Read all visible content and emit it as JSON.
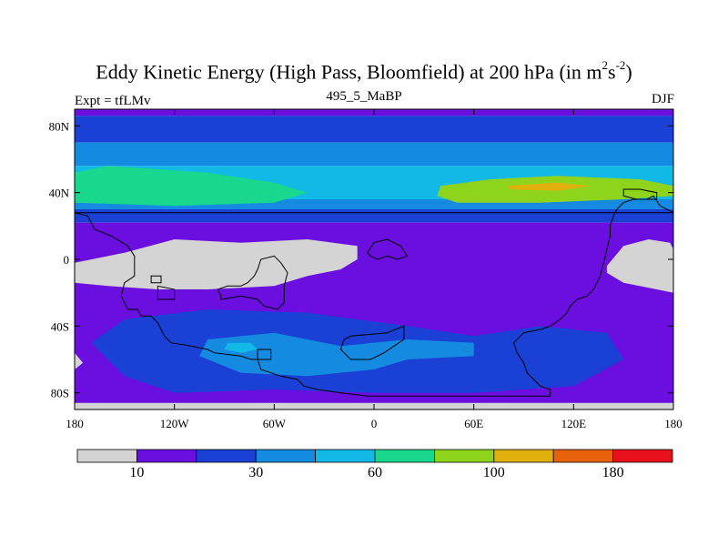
{
  "title": {
    "main": "Eddy Kinetic Energy (High Pass, Bloomfield) at 200 hPa (in m",
    "sup1": "2",
    "mid": "s",
    "sup2": "-2",
    "end": ")"
  },
  "subtitle": "495_5_MaBP",
  "left_label": "Expt = tfLMv",
  "right_label": "DJF",
  "chart_data": {
    "type": "heatmap",
    "projection": "cylindrical equidistant",
    "lon_range": [
      -180,
      180
    ],
    "lat_range": [
      -90,
      90
    ],
    "x_ticks": [
      {
        "value": -180,
        "label": "180"
      },
      {
        "value": -120,
        "label": "120W"
      },
      {
        "value": -60,
        "label": "60W"
      },
      {
        "value": 0,
        "label": "0"
      },
      {
        "value": 60,
        "label": "60E"
      },
      {
        "value": 120,
        "label": "120E"
      },
      {
        "value": 180,
        "label": "180"
      }
    ],
    "y_ticks": [
      {
        "value": 80,
        "label": "80N"
      },
      {
        "value": 40,
        "label": "40N"
      },
      {
        "value": 0,
        "label": "0"
      },
      {
        "value": -40,
        "label": "40S"
      },
      {
        "value": -80,
        "label": "80S"
      }
    ],
    "colorbar": {
      "colors": [
        "#d4d4d4",
        "#6a0fe0",
        "#1a40d6",
        "#148be0",
        "#12b9e6",
        "#18d88e",
        "#8fd41c",
        "#e0b00c",
        "#e8620c",
        "#e8101c"
      ],
      "labels": [
        {
          "after_box": 1,
          "label": "10"
        },
        {
          "after_box": 3,
          "label": "30"
        },
        {
          "after_box": 5,
          "label": "60"
        },
        {
          "after_box": 7,
          "label": "100"
        },
        {
          "after_box": 9,
          "label": "180"
        }
      ]
    },
    "zonal_bands": [
      {
        "lat_top": 90,
        "lat_bottom": 86,
        "level": 2
      },
      {
        "lat_top": 86,
        "lat_bottom": 70,
        "level": 3
      },
      {
        "lat_top": 70,
        "lat_bottom": 56,
        "level": 4
      },
      {
        "lat_top": 56,
        "lat_bottom": 36,
        "level": 5
      },
      {
        "lat_top": 36,
        "lat_bottom": 30,
        "level": 4
      },
      {
        "lat_top": 30,
        "lat_bottom": 22,
        "level": 3
      },
      {
        "lat_top": 22,
        "lat_bottom": -90,
        "level": 2
      }
    ],
    "regions": [
      {
        "level": 6,
        "points": [
          [
            -180,
            52
          ],
          [
            -160,
            56
          ],
          [
            -100,
            52
          ],
          [
            -60,
            46
          ],
          [
            -40,
            40
          ],
          [
            -60,
            34
          ],
          [
            -120,
            32
          ],
          [
            -180,
            34
          ]
        ]
      },
      {
        "level": 7,
        "points": [
          [
            40,
            44
          ],
          [
            70,
            48
          ],
          [
            110,
            50
          ],
          [
            160,
            48
          ],
          [
            180,
            44
          ],
          [
            180,
            38
          ],
          [
            150,
            36
          ],
          [
            100,
            34
          ],
          [
            50,
            34
          ],
          [
            38,
            38
          ]
        ]
      },
      {
        "level": 8,
        "points": [
          [
            80,
            44
          ],
          [
            110,
            46
          ],
          [
            130,
            44
          ],
          [
            110,
            41
          ],
          [
            82,
            42
          ]
        ]
      },
      {
        "level": 3,
        "points": [
          [
            -150,
            -36
          ],
          [
            -100,
            -30
          ],
          [
            -40,
            -32
          ],
          [
            20,
            -40
          ],
          [
            60,
            -46
          ],
          [
            100,
            -40
          ],
          [
            140,
            -44
          ],
          [
            150,
            -60
          ],
          [
            120,
            -76
          ],
          [
            60,
            -80
          ],
          [
            0,
            -80
          ],
          [
            -60,
            -78
          ],
          [
            -120,
            -80
          ],
          [
            -150,
            -70
          ],
          [
            -170,
            -50
          ]
        ]
      },
      {
        "level": 4,
        "points": [
          [
            -100,
            -48
          ],
          [
            -60,
            -44
          ],
          [
            -20,
            -52
          ],
          [
            20,
            -48
          ],
          [
            60,
            -50
          ],
          [
            60,
            -58
          ],
          [
            20,
            -60
          ],
          [
            0,
            -66
          ],
          [
            -40,
            -70
          ],
          [
            -80,
            -68
          ],
          [
            -105,
            -58
          ]
        ]
      },
      {
        "level": 5,
        "points": [
          [
            -88,
            -50
          ],
          [
            -74,
            -50
          ],
          [
            -70,
            -54
          ],
          [
            -80,
            -56
          ],
          [
            -90,
            -54
          ]
        ]
      },
      {
        "level": 2,
        "points": [
          [
            -180,
            -72
          ],
          [
            -140,
            -76
          ],
          [
            -100,
            -84
          ],
          [
            -40,
            -86
          ],
          [
            40,
            -86
          ],
          [
            100,
            -84
          ],
          [
            150,
            -80
          ],
          [
            180,
            -76
          ],
          [
            180,
            -90
          ],
          [
            -180,
            -90
          ]
        ]
      },
      {
        "level": 1,
        "points": [
          [
            -180,
            -86
          ],
          [
            180,
            -86
          ],
          [
            180,
            -90
          ],
          [
            -180,
            -90
          ]
        ]
      },
      {
        "level": 1,
        "points": [
          [
            -180,
            -2
          ],
          [
            -150,
            4
          ],
          [
            -120,
            12
          ],
          [
            -80,
            10
          ],
          [
            -40,
            12
          ],
          [
            -10,
            8
          ],
          [
            -10,
            0
          ],
          [
            -20,
            -6
          ],
          [
            -40,
            -10
          ],
          [
            -60,
            -16
          ],
          [
            -100,
            -18
          ],
          [
            -130,
            -18
          ],
          [
            -160,
            -16
          ],
          [
            -180,
            -14
          ]
        ]
      },
      {
        "level": 1,
        "points": [
          [
            -180,
            -56
          ],
          [
            -175,
            -62
          ],
          [
            -180,
            -66
          ]
        ]
      },
      {
        "level": 1,
        "points": [
          [
            140,
            -4
          ],
          [
            150,
            8
          ],
          [
            165,
            12
          ],
          [
            178,
            10
          ],
          [
            180,
            6
          ],
          [
            180,
            -20
          ],
          [
            170,
            -18
          ],
          [
            150,
            -14
          ],
          [
            140,
            -8
          ]
        ]
      }
    ],
    "outlines": [
      [
        [
          -180,
          28
        ],
        [
          -172,
          26
        ],
        [
          -168,
          18
        ],
        [
          -158,
          14
        ],
        [
          -148,
          8
        ],
        [
          -144,
          2
        ],
        [
          -144,
          -10
        ],
        [
          -150,
          -14
        ],
        [
          -152,
          -22
        ],
        [
          -148,
          -30
        ],
        [
          -142,
          -30
        ],
        [
          -140,
          -34
        ],
        [
          -134,
          -34
        ],
        [
          -130,
          -38
        ],
        [
          -126,
          -46
        ],
        [
          -122,
          -50
        ],
        [
          -110,
          -52
        ],
        [
          -100,
          -54
        ],
        [
          -96,
          -56
        ],
        [
          -80,
          -58
        ],
        [
          -74,
          -60
        ],
        [
          -70,
          -60
        ],
        [
          -68,
          -66
        ],
        [
          -62,
          -68
        ],
        [
          -56,
          -70
        ],
        [
          -46,
          -72
        ],
        [
          -42,
          -76
        ],
        [
          -34,
          -78
        ],
        [
          -20,
          -80
        ],
        [
          -4,
          -82
        ],
        [
          40,
          -82
        ],
        [
          80,
          -82
        ],
        [
          100,
          -82
        ],
        [
          106,
          -82
        ],
        [
          106,
          -78
        ],
        [
          100,
          -76
        ],
        [
          96,
          -72
        ],
        [
          92,
          -68
        ],
        [
          90,
          -62
        ],
        [
          86,
          -56
        ],
        [
          84,
          -50
        ],
        [
          90,
          -44
        ],
        [
          100,
          -42
        ],
        [
          106,
          -40
        ],
        [
          112,
          -36
        ],
        [
          116,
          -32
        ],
        [
          118,
          -28
        ],
        [
          122,
          -24
        ],
        [
          128,
          -22
        ],
        [
          132,
          -18
        ],
        [
          134,
          -14
        ],
        [
          136,
          -10
        ],
        [
          138,
          -2
        ],
        [
          140,
          6
        ],
        [
          142,
          14
        ],
        [
          142,
          20
        ],
        [
          144,
          26
        ],
        [
          146,
          30
        ],
        [
          150,
          34
        ],
        [
          156,
          36
        ],
        [
          164,
          36
        ],
        [
          168,
          38
        ],
        [
          172,
          32
        ],
        [
          176,
          30
        ],
        [
          180,
          28
        ]
      ],
      [
        [
          -92,
          -24
        ],
        [
          -80,
          -22
        ],
        [
          -70,
          -24
        ],
        [
          -66,
          -28
        ],
        [
          -58,
          -30
        ],
        [
          -54,
          -26
        ],
        [
          -54,
          -16
        ],
        [
          -52,
          -8
        ],
        [
          -56,
          -2
        ],
        [
          -60,
          2
        ],
        [
          -68,
          0
        ],
        [
          -70,
          -6
        ],
        [
          -72,
          -10
        ],
        [
          -76,
          -14
        ],
        [
          -80,
          -16
        ],
        [
          -88,
          -16
        ],
        [
          -94,
          -18
        ],
        [
          -92,
          -22
        ]
      ],
      [
        [
          -14,
          -46
        ],
        [
          8,
          -44
        ],
        [
          18,
          -40
        ],
        [
          18,
          -48
        ],
        [
          12,
          -52
        ],
        [
          6,
          -56
        ],
        [
          -2,
          -60
        ],
        [
          -14,
          -60
        ],
        [
          -20,
          -54
        ],
        [
          -18,
          -48
        ]
      ],
      [
        [
          -4,
          4
        ],
        [
          0,
          10
        ],
        [
          8,
          12
        ],
        [
          16,
          8
        ],
        [
          20,
          2
        ],
        [
          14,
          0
        ],
        [
          8,
          2
        ],
        [
          2,
          0
        ],
        [
          -2,
          2
        ]
      ],
      [
        [
          -130,
          -16
        ],
        [
          -130,
          -24
        ],
        [
          -120,
          -24
        ],
        [
          -120,
          -18
        ]
      ],
      [
        [
          -134,
          -10
        ],
        [
          -134,
          -14
        ],
        [
          -128,
          -14
        ],
        [
          -128,
          -10
        ]
      ],
      [
        [
          -70,
          -54
        ],
        [
          -70,
          -60
        ],
        [
          -62,
          -60
        ],
        [
          -62,
          -54
        ]
      ],
      [
        [
          150,
          42
        ],
        [
          150,
          38
        ],
        [
          158,
          36
        ],
        [
          170,
          36
        ],
        [
          170,
          40
        ],
        [
          160,
          42
        ]
      ]
    ]
  }
}
